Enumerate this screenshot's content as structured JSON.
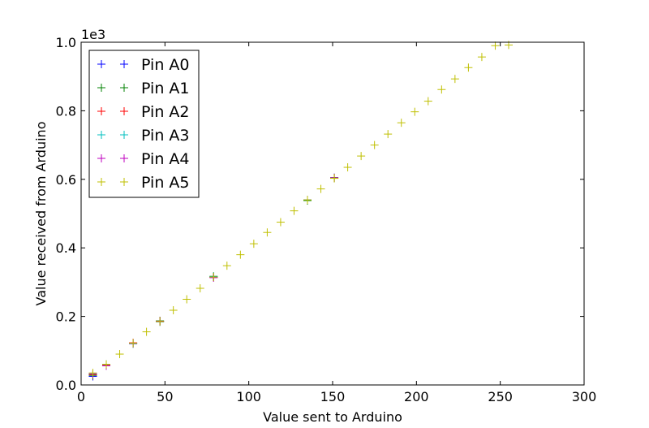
{
  "chart_data": {
    "type": "scatter",
    "title": "",
    "xlabel": "Value sent to Arduino",
    "ylabel": "Value received from Arduino",
    "xlim": [
      0,
      300
    ],
    "ylim": [
      0,
      1000
    ],
    "x_ticks": [
      0,
      50,
      100,
      150,
      200,
      250,
      300
    ],
    "x_tick_labels": [
      "0",
      "50",
      "100",
      "150",
      "200",
      "250",
      "300"
    ],
    "y_ticks": [
      0,
      200,
      400,
      600,
      800,
      1000
    ],
    "y_tick_labels": [
      "0.0",
      "0.2",
      "0.4",
      "0.6",
      "0.8",
      "1.0"
    ],
    "y_offset_text": "1e3",
    "grid": false,
    "legend_position": "top-left",
    "marker": "+",
    "series": [
      {
        "name": "Pin A0",
        "color": "#0000ff",
        "x": [
          7,
          15,
          31,
          47,
          79,
          135,
          151
        ],
        "y": [
          25,
          57,
          122,
          185,
          315,
          540,
          605
        ]
      },
      {
        "name": "Pin A1",
        "color": "#008000",
        "x": [
          7,
          15,
          31,
          47,
          79,
          135,
          151
        ],
        "y": [
          28,
          59,
          121,
          187,
          317,
          538,
          603
        ]
      },
      {
        "name": "Pin A2",
        "color": "#ff0000",
        "x": [
          7,
          15,
          31,
          47,
          79,
          151
        ],
        "y": [
          30,
          58,
          123,
          186,
          314,
          604
        ]
      },
      {
        "name": "Pin A3",
        "color": "#00bfbf",
        "x": [
          7,
          15,
          31,
          47,
          79
        ],
        "y": [
          32,
          60,
          120,
          184,
          316
        ]
      },
      {
        "name": "Pin A4",
        "color": "#bf00bf",
        "x": [
          7,
          15,
          31,
          47,
          79
        ],
        "y": [
          33,
          56,
          121,
          185,
          313
        ]
      },
      {
        "name": "Pin A5",
        "color": "#bfbf00",
        "x": [
          7,
          15,
          23,
          31,
          39,
          47,
          55,
          63,
          71,
          79,
          87,
          95,
          103,
          111,
          119,
          127,
          135,
          143,
          151,
          159,
          167,
          175,
          183,
          191,
          199,
          207,
          215,
          223,
          231,
          239,
          247,
          255
        ],
        "y": [
          35,
          60,
          90,
          122,
          155,
          185,
          218,
          250,
          282,
          315,
          348,
          380,
          412,
          445,
          475,
          508,
          540,
          572,
          603,
          635,
          668,
          700,
          732,
          765,
          797,
          828,
          862,
          893,
          926,
          957,
          990,
          992
        ]
      }
    ]
  }
}
